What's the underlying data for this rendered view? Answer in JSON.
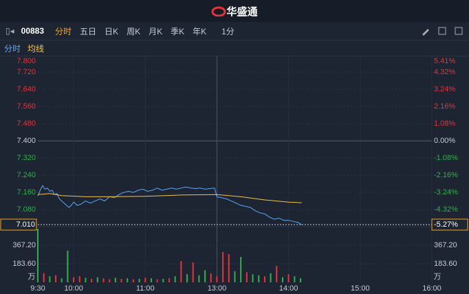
{
  "header": {
    "brand": "华盛通"
  },
  "toolbar": {
    "code": "00883",
    "tabs": [
      "分时",
      "五日",
      "日K",
      "周K",
      "月K",
      "季K",
      "年K",
      "1分"
    ]
  },
  "subbar": {
    "items": [
      "分时",
      "均线"
    ]
  },
  "chart_data": {
    "type": "intraday",
    "xlim": [
      0,
      330
    ],
    "xticks": [
      {
        "value": 0,
        "label": "9:30"
      },
      {
        "value": 30,
        "label": "10:00"
      },
      {
        "value": 90,
        "label": "11:00"
      },
      {
        "value": 150,
        "label": "13:00"
      },
      {
        "value": 210,
        "label": "14:00"
      },
      {
        "value": 270,
        "label": "15:00"
      },
      {
        "value": 330,
        "label": "16:00"
      }
    ],
    "ylim": [
      7.01,
      7.8
    ],
    "yticks": [
      {
        "value": 7.8,
        "label": "7.800"
      },
      {
        "value": 7.72,
        "label": "7.720"
      },
      {
        "value": 7.64,
        "label": "7.640"
      },
      {
        "value": 7.56,
        "label": "7.560"
      },
      {
        "value": 7.48,
        "label": "7.480"
      },
      {
        "value": 7.4,
        "label": "7.400"
      },
      {
        "value": 7.32,
        "label": "7.320"
      },
      {
        "value": 7.24,
        "label": "7.240"
      },
      {
        "value": 7.16,
        "label": "7.160"
      },
      {
        "value": 7.08,
        "label": "7.080"
      }
    ],
    "y2lim": [
      -5.27,
      5.41
    ],
    "y2ticks": [
      {
        "value": 5.41,
        "label": "5.41%"
      },
      {
        "value": 4.32,
        "label": "4.32%"
      },
      {
        "value": 3.24,
        "label": "3.24%"
      },
      {
        "value": 2.16,
        "label": "2.16%"
      },
      {
        "value": 1.08,
        "label": "1.08%"
      },
      {
        "value": 0,
        "label": "0.00%"
      },
      {
        "value": -1.08,
        "label": "-1.08%"
      },
      {
        "value": -2.16,
        "label": "-2.16%"
      },
      {
        "value": -3.24,
        "label": "-3.24%"
      },
      {
        "value": -4.32,
        "label": "-4.32%"
      }
    ],
    "series": [
      {
        "color": "#5aa9ff",
        "x": [
          0,
          2,
          4,
          6,
          8,
          10,
          12,
          14,
          16,
          18,
          20,
          22,
          24,
          26,
          28,
          30,
          33,
          36,
          40,
          44,
          48,
          52,
          56,
          60,
          64,
          68,
          72,
          76,
          80,
          84,
          88,
          92,
          96,
          100,
          104,
          108,
          112,
          116,
          120,
          124,
          128,
          132,
          136,
          140,
          144,
          148,
          150,
          154,
          158,
          162,
          166,
          170,
          174,
          178,
          182,
          186,
          190,
          194,
          198,
          202,
          206,
          210,
          214,
          218,
          221
        ],
        "values": [
          7.144,
          7.17,
          7.192,
          7.175,
          7.18,
          7.165,
          7.17,
          7.15,
          7.155,
          7.13,
          7.12,
          7.11,
          7.1,
          7.09,
          7.1,
          7.115,
          7.1,
          7.105,
          7.12,
          7.11,
          7.12,
          7.13,
          7.12,
          7.14,
          7.135,
          7.15,
          7.16,
          7.165,
          7.16,
          7.17,
          7.175,
          7.165,
          7.17,
          7.18,
          7.17,
          7.175,
          7.18,
          7.175,
          7.18,
          7.185,
          7.18,
          7.178,
          7.18,
          7.175,
          7.178,
          7.18,
          7.14,
          7.135,
          7.13,
          7.12,
          7.11,
          7.1,
          7.095,
          7.09,
          7.075,
          7.065,
          7.06,
          7.045,
          7.035,
          7.04,
          7.03,
          7.03,
          7.025,
          7.02,
          7.01
        ]
      },
      {
        "color": "#f5c542",
        "x": [
          0,
          10,
          20,
          40,
          60,
          90,
          120,
          150,
          170,
          190,
          210,
          221
        ],
        "values": [
          7.15,
          7.155,
          7.145,
          7.14,
          7.14,
          7.142,
          7.148,
          7.15,
          7.14,
          7.125,
          7.115,
          7.112
        ]
      }
    ],
    "last": {
      "price": {
        "value": 7.01,
        "label": "7.010"
      },
      "change": {
        "value": -5.27,
        "label": "-5.27%"
      }
    },
    "volume": {
      "unit": "万",
      "ylim": [
        0,
        537.2
      ],
      "yticks": [
        {
          "value": 183.6,
          "label": "183.60"
        },
        {
          "value": 367.2,
          "label": "367.20"
        }
      ],
      "x": [
        0,
        5,
        10,
        15,
        20,
        25,
        30,
        35,
        40,
        45,
        50,
        55,
        60,
        65,
        70,
        75,
        80,
        85,
        90,
        95,
        100,
        105,
        110,
        115,
        120,
        125,
        130,
        135,
        140,
        145,
        150,
        155,
        160,
        165,
        170,
        175,
        180,
        185,
        190,
        195,
        200,
        205,
        210,
        215,
        220
      ],
      "values": [
        530,
        90,
        60,
        70,
        40,
        313,
        50,
        60,
        45,
        35,
        50,
        40,
        30,
        45,
        35,
        40,
        30,
        35,
        45,
        40,
        30,
        35,
        40,
        60,
        211,
        80,
        197,
        70,
        120,
        90,
        60,
        300,
        279,
        110,
        252,
        100,
        80,
        70,
        60,
        90,
        163,
        50,
        80,
        60,
        40
      ],
      "colors": [
        "#2fb24b",
        "#e8333a",
        "#2fb24b",
        "#e8333a",
        "#2fb24b",
        "#2fb24b",
        "#e8333a",
        "#e8333a",
        "#2fb24b",
        "#e8333a",
        "#2fb24b",
        "#e8333a",
        "#e8333a",
        "#2fb24b",
        "#e8333a",
        "#2fb24b",
        "#e8333a",
        "#2fb24b",
        "#e8333a",
        "#2fb24b",
        "#e8333a",
        "#2fb24b",
        "#e8333a",
        "#2fb24b",
        "#e8333a",
        "#2fb24b",
        "#e8333a",
        "#2fb24b",
        "#2fb24b",
        "#e8333a",
        "#e8333a",
        "#e8333a",
        "#e8333a",
        "#2fb24b",
        "#2fb24b",
        "#e8333a",
        "#2fb24b",
        "#2fb24b",
        "#e8333a",
        "#2fb24b",
        "#e8333a",
        "#2fb24b",
        "#e8333a",
        "#2fb24b",
        "#2fb24b"
      ]
    }
  }
}
